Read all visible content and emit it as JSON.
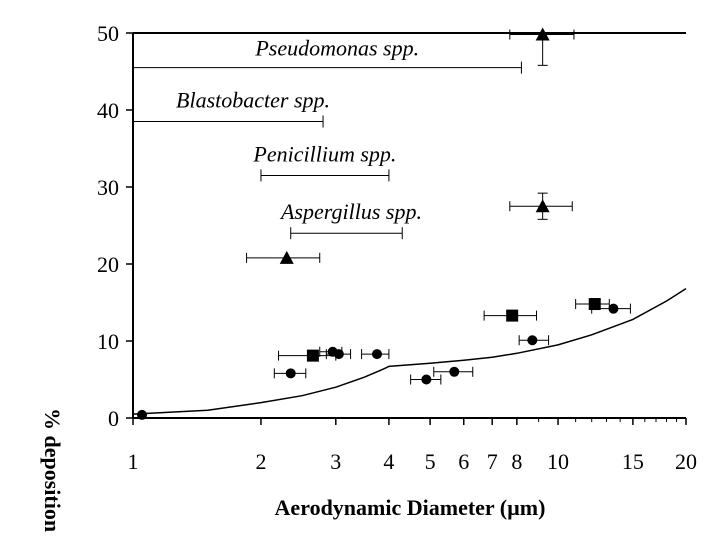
{
  "chart_data": {
    "type": "scatter",
    "title": "",
    "xlabel": "Aerodynamic Diameter (µm)",
    "ylabel": "% deposition",
    "x_scale": "log",
    "xlim": [
      1,
      20
    ],
    "ylim": [
      0,
      50
    ],
    "x_ticks": [
      1,
      2,
      3,
      4,
      5,
      6,
      7,
      8,
      10,
      15,
      20
    ],
    "x_tick_labels": [
      "1",
      "2",
      "3",
      "4",
      "5",
      "6",
      "7",
      "8",
      "10",
      "15",
      "20"
    ],
    "y_ticks": [
      0,
      10,
      20,
      30,
      40,
      50
    ],
    "y_tick_labels": [
      "0",
      "10",
      "20",
      "30",
      "40",
      "50"
    ],
    "size_ranges": [
      {
        "label": "Pseudomonas spp.",
        "x_start": 1,
        "x_end": 8.2,
        "y": 45.5
      },
      {
        "label": "Blastobacter spp.",
        "x_start": 1,
        "x_end": 2.8,
        "y": 38.5
      },
      {
        "label": "Penicillium spp.",
        "x_start": 2.0,
        "x_end": 4.0,
        "y": 31.5
      },
      {
        "label": "Aspergillus spp.",
        "x_start": 2.35,
        "x_end": 4.3,
        "y": 24.0
      }
    ],
    "series": [
      {
        "marker": "circle",
        "points": [
          {
            "x": 1.05,
            "y": 0.4,
            "xerr": [
              1.05,
              1.05
            ],
            "yerr": [
              0.4,
              0.4
            ]
          },
          {
            "x": 2.35,
            "y": 5.8,
            "xerr": [
              2.15,
              2.55
            ],
            "yerr": [
              5.8,
              5.8
            ]
          },
          {
            "x": 2.95,
            "y": 8.6,
            "xerr": [
              2.75,
              3.1
            ],
            "yerr": [
              8.6,
              8.6
            ]
          },
          {
            "x": 3.05,
            "y": 8.3,
            "xerr": [
              2.85,
              3.25
            ],
            "yerr": [
              8.3,
              8.3
            ]
          },
          {
            "x": 3.75,
            "y": 8.3,
            "xerr": [
              3.45,
              4.0
            ],
            "yerr": [
              8.3,
              8.3
            ]
          },
          {
            "x": 4.9,
            "y": 5.0,
            "xerr": [
              4.5,
              5.3
            ],
            "yerr": [
              5.0,
              5.0
            ]
          },
          {
            "x": 5.7,
            "y": 6.0,
            "xerr": [
              5.1,
              6.3
            ],
            "yerr": [
              6.0,
              6.0
            ]
          },
          {
            "x": 8.7,
            "y": 10.1,
            "xerr": [
              8.1,
              9.5
            ],
            "yerr": [
              10.1,
              10.1
            ]
          },
          {
            "x": 13.5,
            "y": 14.2,
            "xerr": [
              12.0,
              14.8
            ],
            "yerr": [
              14.2,
              14.2
            ]
          }
        ]
      },
      {
        "marker": "square",
        "points": [
          {
            "x": 2.65,
            "y": 8.1,
            "xerr": [
              2.2,
              3.0
            ],
            "yerr": [
              8.1,
              8.1
            ]
          },
          {
            "x": 7.8,
            "y": 13.3,
            "xerr": [
              6.7,
              8.9
            ],
            "yerr": [
              13.3,
              13.3
            ]
          },
          {
            "x": 12.2,
            "y": 14.8,
            "xerr": [
              11.0,
              13.2
            ],
            "yerr": [
              14.8,
              14.8
            ]
          }
        ]
      },
      {
        "marker": "triangle",
        "points": [
          {
            "x": 2.3,
            "y": 20.8,
            "xerr": [
              1.85,
              2.75
            ],
            "yerr": [
              20.8,
              20.8
            ]
          },
          {
            "x": 9.2,
            "y": 27.5,
            "xerr": [
              7.7,
              10.8
            ],
            "yerr": [
              25.8,
              29.2
            ]
          },
          {
            "x": 9.2,
            "y": 49.8,
            "xerr": [
              7.7,
              10.9
            ],
            "yerr": [
              45.8,
              50.0
            ]
          }
        ]
      }
    ],
    "curve": {
      "x": [
        1.0,
        1.5,
        2.0,
        2.5,
        3.0,
        3.5,
        3.9,
        4.0,
        5.0,
        6.0,
        7.0,
        8.0,
        10.0,
        12.0,
        15.0,
        18.0,
        20.0
      ],
      "y": [
        0.5,
        1.0,
        2.0,
        2.9,
        4.0,
        5.3,
        6.4,
        6.7,
        7.1,
        7.5,
        7.9,
        8.4,
        9.5,
        10.8,
        12.8,
        15.2,
        16.8
      ]
    }
  }
}
